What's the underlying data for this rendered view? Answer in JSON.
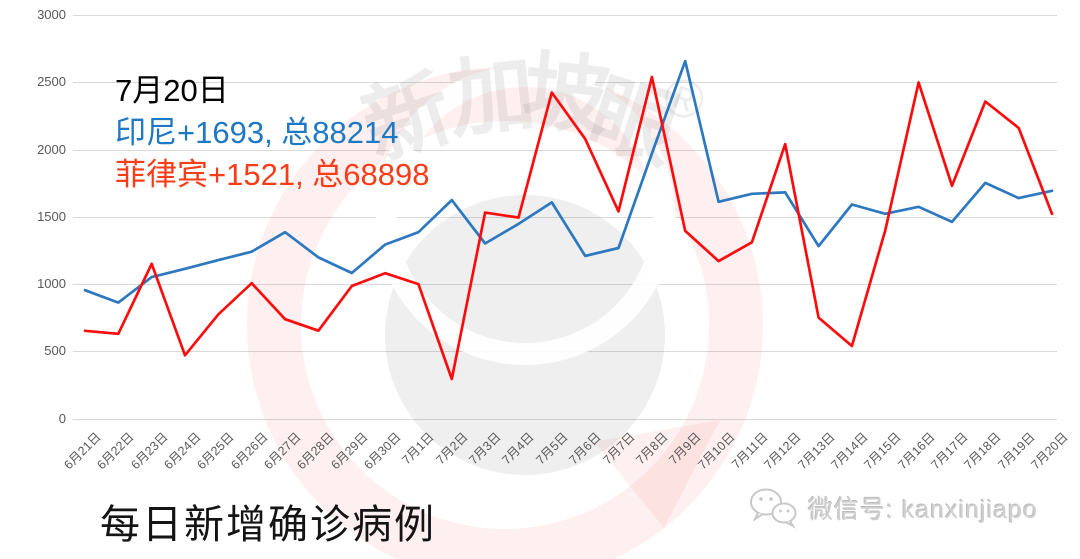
{
  "annotation": {
    "date": "7月20日",
    "indonesia": "印尼+1693, 总88214",
    "philippines": "菲律宾+1521, 总68898"
  },
  "footer": {
    "title": "每日新增确诊病例",
    "wechat_label": "微信号: kanxinjiapo"
  },
  "watermark": {
    "text": "新加坡眼",
    "chars": [
      "新",
      "加",
      "坡",
      "眼"
    ],
    "registered": "®"
  },
  "colors": {
    "indonesia_text": "#1E78C3",
    "philippines_text": "#FA3C19",
    "indonesia_line": "#2E78C0",
    "philippines_line": "#FB0D0D",
    "grid": "#D9D9D9",
    "axis_text": "#595959"
  },
  "chart_data": {
    "type": "line",
    "title": "每日新增确诊病例",
    "xlabel": "",
    "ylabel": "",
    "ylim": [
      0,
      3000
    ],
    "yticks": [
      0,
      500,
      1000,
      1500,
      2000,
      2500,
      3000
    ],
    "grid": "horizontal",
    "legend": "none",
    "categories": [
      "6月21日",
      "6月22日",
      "6月23日",
      "6月24日",
      "6月25日",
      "6月26日",
      "6月27日",
      "6月28日",
      "6月29日",
      "6月30日",
      "7月1日",
      "7月2日",
      "7月3日",
      "7月4日",
      "7月5日",
      "7月6日",
      "7月7日",
      "7月8日",
      "7月9日",
      "7月10日",
      "7月11日",
      "7月12日",
      "7月13日",
      "7月14日",
      "7月15日",
      "7月16日",
      "7月17日",
      "7月18日",
      "7月19日",
      "7月20日"
    ],
    "series": [
      {
        "name": "印尼",
        "color": "#2E78C0",
        "values": [
          954,
          862,
          1051,
          1113,
          1178,
          1240,
          1385,
          1198,
          1082,
          1293,
          1385,
          1624,
          1301,
          1447,
          1607,
          1209,
          1268,
          1970,
          2657,
          1611,
          1671,
          1681,
          1282,
          1591,
          1522,
          1574,
          1462,
          1752,
          1639,
          1693
        ]
      },
      {
        "name": "菲律宾",
        "color": "#FB0D0D",
        "values": [
          652,
          630,
          1150,
          470,
          775,
          1006,
          738,
          653,
          985,
          1080,
          999,
          294,
          1531,
          1494,
          2424,
          2079,
          1540,
          2539,
          1395,
          1170,
          1310,
          2040,
          750,
          539,
          1400,
          2498,
          1730,
          2357,
          2160,
          1521
        ]
      }
    ]
  }
}
